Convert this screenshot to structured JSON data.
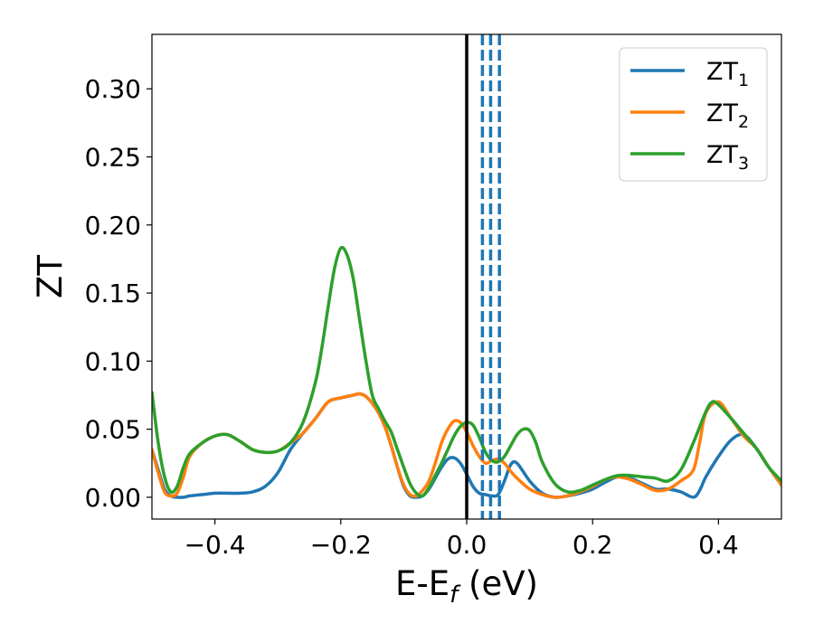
{
  "chart_data": {
    "type": "line",
    "xlabel": "E-E",
    "xlabel_sub": "f",
    "xlabel_unit": " (eV)",
    "ylabel": "ZT",
    "xlim": [
      -0.5,
      0.5
    ],
    "ylim": [
      -0.016,
      0.34
    ],
    "xticks": [
      -0.4,
      -0.2,
      0.0,
      0.2,
      0.4
    ],
    "xtick_labels": [
      "−0.4",
      "−0.2",
      "0.0",
      "0.2",
      "0.4"
    ],
    "yticks": [
      0.0,
      0.05,
      0.1,
      0.15,
      0.2,
      0.25,
      0.3
    ],
    "ytick_labels": [
      "0.00",
      "0.05",
      "0.10",
      "0.15",
      "0.20",
      "0.25",
      "0.30"
    ],
    "grid": false,
    "legend_position": "top-right",
    "fermi_line": {
      "x": 0.0,
      "color": "#000000"
    },
    "dashed_lines": {
      "x": [
        0.025,
        0.038,
        0.052
      ],
      "color": "#1f77b4"
    },
    "series": [
      {
        "name": "ZT",
        "subscript": "1",
        "color": "#1f77b4",
        "x": [
          -0.5,
          -0.49,
          -0.48,
          -0.47,
          -0.46,
          -0.45,
          -0.44,
          -0.42,
          -0.4,
          -0.38,
          -0.36,
          -0.34,
          -0.32,
          -0.3,
          -0.28,
          -0.26,
          -0.24,
          -0.22,
          -0.2,
          -0.18,
          -0.17,
          -0.16,
          -0.15,
          -0.14,
          -0.13,
          -0.12,
          -0.11,
          -0.1,
          -0.09,
          -0.08,
          -0.07,
          -0.06,
          -0.05,
          -0.04,
          -0.03,
          -0.02,
          -0.01,
          0.0,
          0.01,
          0.02,
          0.03,
          0.04,
          0.05,
          0.06,
          0.07,
          0.08,
          0.1,
          0.12,
          0.14,
          0.16,
          0.18,
          0.2,
          0.22,
          0.24,
          0.26,
          0.28,
          0.3,
          0.32,
          0.34,
          0.36,
          0.37,
          0.38,
          0.4,
          0.42,
          0.44,
          0.46,
          0.48,
          0.5
        ],
        "y": [
          0.035,
          0.02,
          0.006,
          0.001,
          0.0,
          0.0,
          0.001,
          0.002,
          0.003,
          0.003,
          0.003,
          0.004,
          0.008,
          0.018,
          0.035,
          0.047,
          0.058,
          0.07,
          0.073,
          0.075,
          0.076,
          0.074,
          0.069,
          0.062,
          0.052,
          0.038,
          0.022,
          0.008,
          0.001,
          0.0,
          0.001,
          0.006,
          0.014,
          0.022,
          0.028,
          0.029,
          0.025,
          0.017,
          0.008,
          0.003,
          0.002,
          0.001,
          0.002,
          0.012,
          0.024,
          0.025,
          0.012,
          0.003,
          0.0,
          0.001,
          0.003,
          0.006,
          0.011,
          0.015,
          0.014,
          0.01,
          0.006,
          0.006,
          0.004,
          0.0,
          0.005,
          0.015,
          0.03,
          0.042,
          0.046,
          0.036,
          0.022,
          0.009
        ]
      },
      {
        "name": "ZT",
        "subscript": "2",
        "color": "#ff7f0e",
        "x": [
          -0.5,
          -0.49,
          -0.48,
          -0.47,
          -0.46,
          -0.45,
          -0.44,
          -0.42,
          -0.4,
          -0.38,
          -0.36,
          -0.34,
          -0.32,
          -0.3,
          -0.28,
          -0.26,
          -0.24,
          -0.22,
          -0.2,
          -0.18,
          -0.17,
          -0.16,
          -0.15,
          -0.14,
          -0.13,
          -0.12,
          -0.11,
          -0.1,
          -0.09,
          -0.08,
          -0.07,
          -0.06,
          -0.05,
          -0.04,
          -0.03,
          -0.02,
          -0.01,
          0.0,
          0.01,
          0.02,
          0.03,
          0.04,
          0.05,
          0.06,
          0.07,
          0.08,
          0.1,
          0.12,
          0.14,
          0.16,
          0.18,
          0.2,
          0.22,
          0.24,
          0.26,
          0.28,
          0.3,
          0.32,
          0.34,
          0.36,
          0.37,
          0.38,
          0.4,
          0.42,
          0.44,
          0.46,
          0.48,
          0.5
        ],
        "y": [
          0.035,
          0.018,
          0.004,
          0.001,
          0.003,
          0.015,
          0.03,
          0.04,
          0.045,
          0.046,
          0.041,
          0.035,
          0.033,
          0.034,
          0.04,
          0.047,
          0.058,
          0.07,
          0.073,
          0.075,
          0.076,
          0.074,
          0.069,
          0.062,
          0.052,
          0.038,
          0.022,
          0.009,
          0.002,
          0.001,
          0.005,
          0.012,
          0.025,
          0.04,
          0.05,
          0.056,
          0.055,
          0.048,
          0.038,
          0.03,
          0.025,
          0.027,
          0.028,
          0.025,
          0.019,
          0.014,
          0.006,
          0.002,
          0.0,
          0.001,
          0.004,
          0.008,
          0.013,
          0.015,
          0.013,
          0.009,
          0.005,
          0.006,
          0.012,
          0.02,
          0.04,
          0.062,
          0.07,
          0.058,
          0.045,
          0.036,
          0.022,
          0.009
        ]
      },
      {
        "name": "ZT",
        "subscript": "3",
        "color": "#2ca02c",
        "x": [
          -0.5,
          -0.49,
          -0.48,
          -0.47,
          -0.46,
          -0.45,
          -0.44,
          -0.42,
          -0.4,
          -0.38,
          -0.36,
          -0.34,
          -0.32,
          -0.3,
          -0.28,
          -0.26,
          -0.24,
          -0.23,
          -0.22,
          -0.21,
          -0.2,
          -0.19,
          -0.18,
          -0.17,
          -0.16,
          -0.15,
          -0.14,
          -0.13,
          -0.12,
          -0.11,
          -0.1,
          -0.09,
          -0.08,
          -0.07,
          -0.06,
          -0.05,
          -0.04,
          -0.03,
          -0.02,
          -0.01,
          0.0,
          0.01,
          0.02,
          0.03,
          0.04,
          0.05,
          0.06,
          0.07,
          0.08,
          0.09,
          0.1,
          0.11,
          0.12,
          0.14,
          0.16,
          0.18,
          0.2,
          0.22,
          0.24,
          0.26,
          0.28,
          0.3,
          0.32,
          0.34,
          0.36,
          0.38,
          0.39,
          0.4,
          0.42,
          0.44,
          0.46,
          0.48,
          0.5
        ],
        "y": [
          0.077,
          0.04,
          0.015,
          0.004,
          0.008,
          0.022,
          0.032,
          0.04,
          0.045,
          0.046,
          0.041,
          0.035,
          0.033,
          0.034,
          0.04,
          0.055,
          0.085,
          0.11,
          0.14,
          0.168,
          0.183,
          0.178,
          0.16,
          0.13,
          0.1,
          0.075,
          0.065,
          0.056,
          0.048,
          0.035,
          0.022,
          0.01,
          0.003,
          0.001,
          0.007,
          0.016,
          0.025,
          0.035,
          0.045,
          0.052,
          0.055,
          0.053,
          0.044,
          0.033,
          0.027,
          0.026,
          0.03,
          0.038,
          0.046,
          0.05,
          0.049,
          0.04,
          0.026,
          0.01,
          0.004,
          0.005,
          0.009,
          0.013,
          0.016,
          0.016,
          0.015,
          0.014,
          0.012,
          0.02,
          0.04,
          0.063,
          0.07,
          0.068,
          0.058,
          0.047,
          0.036,
          0.022,
          0.012
        ]
      }
    ]
  }
}
